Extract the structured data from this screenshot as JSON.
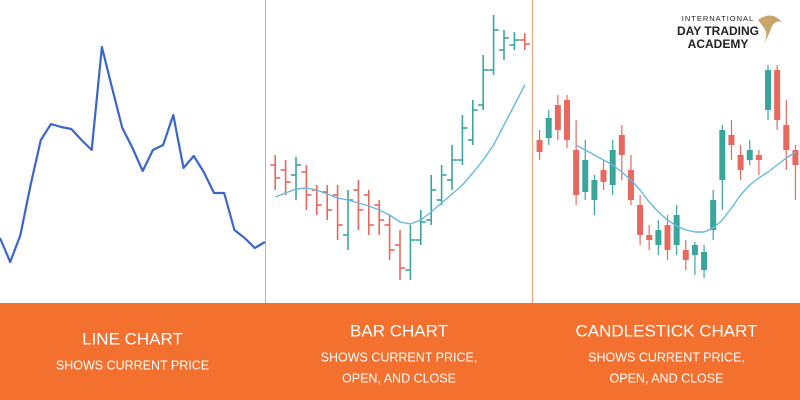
{
  "logo": {
    "line1": "INTERNATIONAL",
    "line2": "DAY TRADING",
    "line3": "ACADEMY"
  },
  "chart_data": [
    {
      "type": "line",
      "title": "LINE CHART",
      "subtitle": [
        "SHOWS CURRENT PRICE"
      ],
      "color": "#3b66c9",
      "ylim": [
        0,
        300
      ],
      "values": [
        62,
        38,
        65,
        115,
        160,
        176,
        173,
        171,
        160,
        150,
        253,
        212,
        172,
        152,
        129,
        150,
        155,
        185,
        132,
        144,
        128,
        107,
        107,
        70,
        62,
        52,
        58
      ]
    },
    {
      "type": "ohlc",
      "title": "BAR CHART",
      "subtitle": [
        "SHOWS CURRENT PRICE,",
        "OPEN, AND CLOSE"
      ],
      "ylim": [
        0,
        300
      ],
      "up_color": "#3aa69b",
      "down_color": "#e8685f",
      "open": [
        135,
        130,
        125,
        128,
        110,
        108,
        105,
        65,
        110,
        105,
        95,
        75,
        55,
        30,
        60,
        80,
        100,
        120,
        140,
        160,
        195,
        230,
        250,
        255,
        260
      ],
      "high": [
        145,
        140,
        143,
        135,
        115,
        115,
        115,
        110,
        120,
        110,
        100,
        85,
        70,
        75,
        90,
        125,
        135,
        155,
        185,
        200,
        245,
        285,
        270,
        268,
        267
      ],
      "low": [
        110,
        105,
        100,
        90,
        85,
        80,
        60,
        50,
        70,
        65,
        65,
        40,
        20,
        20,
        55,
        75,
        95,
        110,
        135,
        155,
        190,
        225,
        240,
        250,
        250
      ],
      "close": [
        122,
        118,
        135,
        105,
        95,
        90,
        75,
        100,
        90,
        75,
        80,
        50,
        32,
        60,
        78,
        110,
        125,
        140,
        172,
        190,
        230,
        270,
        262,
        260,
        256
      ],
      "moving_average": {
        "color": "#67b8e0",
        "values": [
          103,
          107,
          111,
          112,
          110,
          106,
          102,
          100,
          97,
          94,
          90,
          85,
          78,
          76,
          80,
          88,
          97,
          106,
          115,
          127,
          140,
          155,
          175,
          195,
          215
        ]
      }
    },
    {
      "type": "candlestick",
      "title": "CANDLESTICK CHART",
      "subtitle": [
        "SHOWS CURRENT PRICE,",
        "OPEN, AND CLOSE"
      ],
      "ylim": [
        0,
        300
      ],
      "up_color": "#3aa69b",
      "down_color": "#e8685f",
      "open": [
        160,
        162,
        195,
        200,
        150,
        108,
        100,
        130,
        115,
        165,
        130,
        95,
        65,
        55,
        75,
        55,
        50,
        45,
        30,
        70,
        120,
        165,
        145,
        140,
        145,
        190,
        230,
        175,
        150
      ],
      "high": [
        170,
        190,
        205,
        205,
        180,
        160,
        125,
        140,
        160,
        175,
        145,
        105,
        75,
        80,
        85,
        95,
        60,
        58,
        55,
        110,
        175,
        180,
        155,
        160,
        150,
        235,
        235,
        200,
        155
      ],
      "low": [
        140,
        155,
        160,
        152,
        95,
        100,
        85,
        110,
        105,
        120,
        95,
        55,
        50,
        45,
        40,
        45,
        30,
        25,
        22,
        60,
        90,
        140,
        120,
        135,
        125,
        180,
        170,
        130,
        100
      ],
      "close": [
        148,
        182,
        170,
        160,
        105,
        140,
        120,
        118,
        150,
        145,
        100,
        65,
        60,
        70,
        50,
        85,
        40,
        55,
        48,
        100,
        170,
        155,
        130,
        150,
        140,
        230,
        180,
        150,
        135
      ],
      "moving_average": {
        "color": "#67b8e0",
        "values": [
          null,
          null,
          null,
          null,
          155,
          150,
          145,
          140,
          135,
          128,
          120,
          110,
          98,
          88,
          80,
          74,
          70,
          68,
          68,
          72,
          80,
          92,
          105,
          115,
          122,
          128,
          135,
          142,
          148
        ]
      }
    }
  ]
}
